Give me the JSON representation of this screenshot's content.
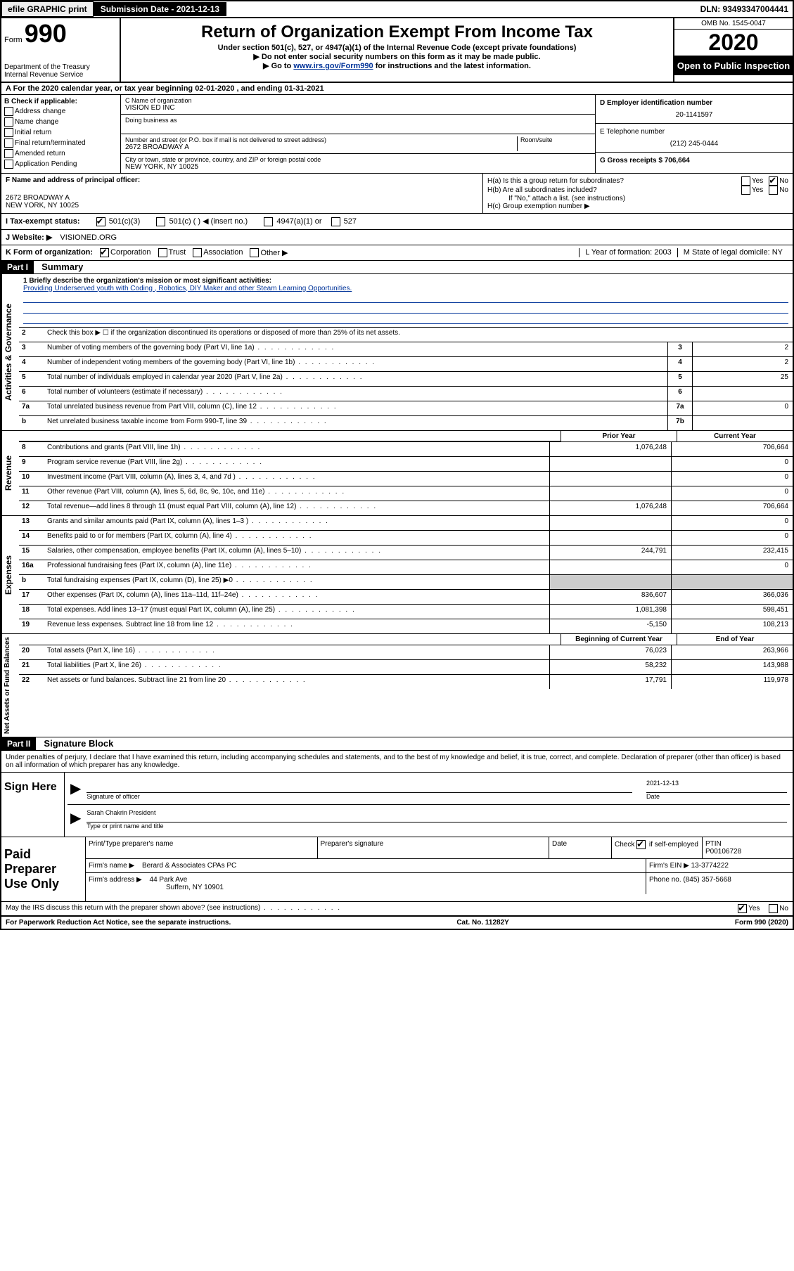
{
  "topbar": {
    "efile": "efile GRAPHIC print",
    "subdate_label": "Submission Date - 2021-12-13",
    "dln": "DLN: 93493347004441"
  },
  "header": {
    "form_label": "Form",
    "form_num": "990",
    "dept": "Department of the Treasury\nInternal Revenue Service",
    "title": "Return of Organization Exempt From Income Tax",
    "subtitle": "Under section 501(c), 527, or 4947(a)(1) of the Internal Revenue Code (except private foundations)",
    "note1": "▶ Do not enter social security numbers on this form as it may be made public.",
    "note2_pre": "▶ Go to ",
    "note2_link": "www.irs.gov/Form990",
    "note2_post": " for instructions and the latest information.",
    "omb": "OMB No. 1545-0047",
    "year": "2020",
    "open": "Open to Public Inspection"
  },
  "row_a": "A   For the 2020 calendar year, or tax year beginning 02-01-2020   , and ending 01-31-2021",
  "entity": {
    "b_label": "B Check if applicable:",
    "checks": [
      "Address change",
      "Name change",
      "Initial return",
      "Final return/terminated",
      "Amended return",
      "Application Pending"
    ],
    "c_label": "C Name of organization",
    "c_name": "VISION ED INC",
    "dba_label": "Doing business as",
    "addr_label": "Number and street (or P.O. box if mail is not delivered to street address)",
    "room_label": "Room/suite",
    "addr": "2672 BROADWAY A",
    "city_label": "City or town, state or province, country, and ZIP or foreign postal code",
    "city": "NEW YORK, NY  10025",
    "d_label": "D Employer identification number",
    "d_val": "20-1141597",
    "e_label": "E Telephone number",
    "e_val": "(212) 245-0444",
    "g_label": "G Gross receipts $ 706,664"
  },
  "officer": {
    "f_label": "F  Name and address of principal officer:",
    "addr1": "2672 BROADWAY A",
    "addr2": "NEW YORK, NY  10025",
    "ha": "H(a)  Is this a group return for subordinates?",
    "hb": "H(b)  Are all subordinates included?",
    "hb_note": "If \"No,\" attach a list. (see instructions)",
    "hc": "H(c)  Group exemption number ▶"
  },
  "tax_status": {
    "label": "I   Tax-exempt status:",
    "opts": [
      "501(c)(3)",
      "501(c) (  ) ◀ (insert no.)",
      "4947(a)(1) or",
      "527"
    ]
  },
  "website": {
    "label": "J   Website: ▶",
    "val": "VISIONED.ORG"
  },
  "form_org": {
    "label": "K Form of organization:",
    "opts": [
      "Corporation",
      "Trust",
      "Association",
      "Other ▶"
    ],
    "l": "L Year of formation: 2003",
    "m": "M State of legal domicile: NY"
  },
  "part1": {
    "header": "Part I",
    "title": "Summary",
    "mission_label": "1   Briefly describe the organization's mission or most significant activities:",
    "mission": "Providing Underserved youth with Coding , Robotics, DIY Maker and other Steam Learning Opportunities.",
    "line2": "Check this box ▶ ☐  if the organization discontinued its operations or disposed of more than 25% of its net assets.",
    "gov_label": "Activities & Governance"
  },
  "summary_lines": [
    {
      "num": "3",
      "text": "Number of voting members of the governing body (Part VI, line 1a)",
      "box": "3",
      "val": "2"
    },
    {
      "num": "4",
      "text": "Number of independent voting members of the governing body (Part VI, line 1b)",
      "box": "4",
      "val": "2"
    },
    {
      "num": "5",
      "text": "Total number of individuals employed in calendar year 2020 (Part V, line 2a)",
      "box": "5",
      "val": "25"
    },
    {
      "num": "6",
      "text": "Total number of volunteers (estimate if necessary)",
      "box": "6",
      "val": ""
    },
    {
      "num": "7a",
      "text": "Total unrelated business revenue from Part VIII, column (C), line 12",
      "box": "7a",
      "val": "0"
    },
    {
      "num": "b",
      "text": "Net unrelated business taxable income from Form 990-T, line 39",
      "box": "7b",
      "val": ""
    }
  ],
  "col_headers": {
    "prior": "Prior Year",
    "current": "Current Year"
  },
  "revenue_label": "Revenue",
  "revenue_lines": [
    {
      "num": "8",
      "text": "Contributions and grants (Part VIII, line 1h)",
      "prior": "1,076,248",
      "current": "706,664"
    },
    {
      "num": "9",
      "text": "Program service revenue (Part VIII, line 2g)",
      "prior": "",
      "current": "0"
    },
    {
      "num": "10",
      "text": "Investment income (Part VIII, column (A), lines 3, 4, and 7d )",
      "prior": "",
      "current": "0"
    },
    {
      "num": "11",
      "text": "Other revenue (Part VIII, column (A), lines 5, 6d, 8c, 9c, 10c, and 11e)",
      "prior": "",
      "current": "0"
    },
    {
      "num": "12",
      "text": "Total revenue—add lines 8 through 11 (must equal Part VIII, column (A), line 12)",
      "prior": "1,076,248",
      "current": "706,664"
    }
  ],
  "expenses_label": "Expenses",
  "expenses_lines": [
    {
      "num": "13",
      "text": "Grants and similar amounts paid (Part IX, column (A), lines 1–3 )",
      "prior": "",
      "current": "0"
    },
    {
      "num": "14",
      "text": "Benefits paid to or for members (Part IX, column (A), line 4)",
      "prior": "",
      "current": "0"
    },
    {
      "num": "15",
      "text": "Salaries, other compensation, employee benefits (Part IX, column (A), lines 5–10)",
      "prior": "244,791",
      "current": "232,415"
    },
    {
      "num": "16a",
      "text": "Professional fundraising fees (Part IX, column (A), line 11e)",
      "prior": "",
      "current": "0"
    },
    {
      "num": "b",
      "text": "Total fundraising expenses (Part IX, column (D), line 25) ▶0",
      "prior": "shaded",
      "current": "shaded"
    },
    {
      "num": "17",
      "text": "Other expenses (Part IX, column (A), lines 11a–11d, 11f–24e)",
      "prior": "836,607",
      "current": "366,036"
    },
    {
      "num": "18",
      "text": "Total expenses. Add lines 13–17 (must equal Part IX, column (A), line 25)",
      "prior": "1,081,398",
      "current": "598,451"
    },
    {
      "num": "19",
      "text": "Revenue less expenses. Subtract line 18 from line 12",
      "prior": "-5,150",
      "current": "108,213"
    }
  ],
  "net_label": "Net Assets or Fund Balances",
  "net_headers": {
    "beg": "Beginning of Current Year",
    "end": "End of Year"
  },
  "net_lines": [
    {
      "num": "20",
      "text": "Total assets (Part X, line 16)",
      "prior": "76,023",
      "current": "263,966"
    },
    {
      "num": "21",
      "text": "Total liabilities (Part X, line 26)",
      "prior": "58,232",
      "current": "143,988"
    },
    {
      "num": "22",
      "text": "Net assets or fund balances. Subtract line 21 from line 20",
      "prior": "17,791",
      "current": "119,978"
    }
  ],
  "part2": {
    "header": "Part II",
    "title": "Signature Block",
    "decl": "Under penalties of perjury, I declare that I have examined this return, including accompanying schedules and statements, and to the best of my knowledge and belief, it is true, correct, and complete. Declaration of preparer (other than officer) is based on all information of which preparer has any knowledge."
  },
  "sign": {
    "label": "Sign Here",
    "sig_label": "Signature of officer",
    "date_label": "Date",
    "date": "2021-12-13",
    "name": "Sarah Chakrin  President",
    "type_label": "Type or print name and title"
  },
  "prep": {
    "label": "Paid Preparer Use Only",
    "h1": "Print/Type preparer's name",
    "h2": "Preparer's signature",
    "h3": "Date",
    "h4_pre": "Check",
    "h4_post": " if self-employed",
    "h5": "PTIN",
    "ptin": "P00106728",
    "firm_label": "Firm's name    ▶",
    "firm": "Berard & Associates CPAs PC",
    "ein_label": "Firm's EIN ▶",
    "ein": "13-3774222",
    "addr_label": "Firm's address ▶",
    "addr1": "44 Park Ave",
    "addr2": "Suffern, NY  10901",
    "phone_label": "Phone no.",
    "phone": "(845) 357-5668"
  },
  "discuss": "May the IRS discuss this return with the preparer shown above? (see instructions)",
  "footer": {
    "left": "For Paperwork Reduction Act Notice, see the separate instructions.",
    "mid": "Cat. No. 11282Y",
    "right": "Form 990 (2020)"
  }
}
